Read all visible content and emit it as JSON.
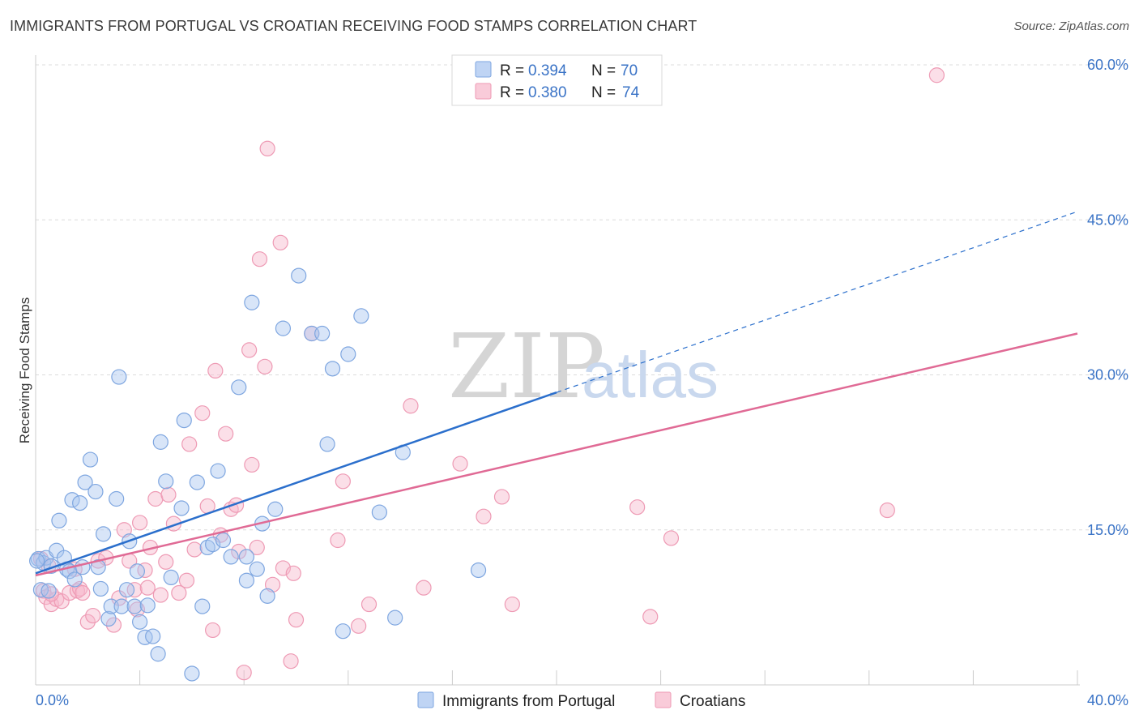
{
  "header": {
    "title": "IMMIGRANTS FROM PORTUGAL VS CROATIAN RECEIVING FOOD STAMPS CORRELATION CHART",
    "source": "Source: ZipAtlas.com"
  },
  "watermark": {
    "zip": "ZIP",
    "atlas": "atlas"
  },
  "colors": {
    "blue_fill": "#a9c6f0",
    "blue_stroke": "#7ea6e0",
    "blue_line": "#2b6fcc",
    "pink_fill": "#f7b9cc",
    "pink_stroke": "#ee9ab4",
    "pink_line": "#e06a95",
    "grid": "#dcdcdc",
    "axis_text": "#3a73c6"
  },
  "legend_top": {
    "rows": [
      {
        "r_label": "R = ",
        "r_value": "0.394",
        "n_label": "N = ",
        "n_value": "70"
      },
      {
        "r_label": "R = ",
        "r_value": "0.380",
        "n_label": "N = ",
        "n_value": "74"
      }
    ]
  },
  "legend_bottom": {
    "items": [
      "Immigrants from Portugal",
      "Croatians"
    ]
  },
  "chart_data": {
    "type": "scatter",
    "title": "IMMIGRANTS FROM PORTUGAL VS CROATIAN RECEIVING FOOD STAMPS CORRELATION CHART",
    "xlabel": "",
    "ylabel": "Receiving Food Stamps",
    "xlim": [
      0,
      40
    ],
    "ylim": [
      0,
      60
    ],
    "x_tick_labels": {
      "left": "0.0%",
      "right": "40.0%"
    },
    "y_ticks": [
      {
        "value": 15,
        "label": "15.0%"
      },
      {
        "value": 30,
        "label": "30.0%"
      },
      {
        "value": 45,
        "label": "45.0%"
      },
      {
        "value": 60,
        "label": "60.0%"
      }
    ],
    "legend_position": "top-center",
    "grid": true,
    "series": [
      {
        "name": "Immigrants from Portugal",
        "R": 0.394,
        "N": 70,
        "trend": {
          "x0": 0,
          "y0": 10.8,
          "x1": 20,
          "y1": 28.3,
          "dashed_to_x": 40,
          "dashed_to_y": 45.8
        },
        "points": [
          [
            0.1,
            12.2
          ],
          [
            0.2,
            9.2
          ],
          [
            0.3,
            11.8
          ],
          [
            0.4,
            12.3
          ],
          [
            0.5,
            9.1
          ],
          [
            0.6,
            11.5
          ],
          [
            0.8,
            13.0
          ],
          [
            0.9,
            15.9
          ],
          [
            1.1,
            12.3
          ],
          [
            1.2,
            11.2
          ],
          [
            1.3,
            11.0
          ],
          [
            1.4,
            17.9
          ],
          [
            1.5,
            10.2
          ],
          [
            1.7,
            17.6
          ],
          [
            1.8,
            11.4
          ],
          [
            1.9,
            19.6
          ],
          [
            2.1,
            21.8
          ],
          [
            2.3,
            18.7
          ],
          [
            2.4,
            11.4
          ],
          [
            2.5,
            9.3
          ],
          [
            2.6,
            14.6
          ],
          [
            2.8,
            6.4
          ],
          [
            2.9,
            7.6
          ],
          [
            3.1,
            18.0
          ],
          [
            3.2,
            29.8
          ],
          [
            3.3,
            7.6
          ],
          [
            3.5,
            9.2
          ],
          [
            3.6,
            13.9
          ],
          [
            3.8,
            7.6
          ],
          [
            3.9,
            11.0
          ],
          [
            4.0,
            6.1
          ],
          [
            4.2,
            4.6
          ],
          [
            4.3,
            7.7
          ],
          [
            4.5,
            4.7
          ],
          [
            4.7,
            3.0
          ],
          [
            4.8,
            23.5
          ],
          [
            5.0,
            19.7
          ],
          [
            5.2,
            10.4
          ],
          [
            5.6,
            17.1
          ],
          [
            5.7,
            25.6
          ],
          [
            6.0,
            1.1
          ],
          [
            6.2,
            19.6
          ],
          [
            6.4,
            7.6
          ],
          [
            6.6,
            13.3
          ],
          [
            6.8,
            13.6
          ],
          [
            7.0,
            20.7
          ],
          [
            7.2,
            14.0
          ],
          [
            7.5,
            12.4
          ],
          [
            7.8,
            28.8
          ],
          [
            8.1,
            12.4
          ],
          [
            8.1,
            10.1
          ],
          [
            8.3,
            37.0
          ],
          [
            8.5,
            11.2
          ],
          [
            8.7,
            15.6
          ],
          [
            8.9,
            8.6
          ],
          [
            9.2,
            17.0
          ],
          [
            9.5,
            34.5
          ],
          [
            10.1,
            39.6
          ],
          [
            10.6,
            34.0
          ],
          [
            11.0,
            34.0
          ],
          [
            11.2,
            23.3
          ],
          [
            11.4,
            30.6
          ],
          [
            11.8,
            5.2
          ],
          [
            12.0,
            32.0
          ],
          [
            12.5,
            35.7
          ],
          [
            13.2,
            16.7
          ],
          [
            13.8,
            6.5
          ],
          [
            14.1,
            22.5
          ],
          [
            17.0,
            11.1
          ],
          [
            0.05,
            12.0
          ]
        ]
      },
      {
        "name": "Croatians",
        "R": 0.38,
        "N": 74,
        "trend": {
          "x0": 0,
          "y0": 10.6,
          "x1": 40,
          "y1": 34.0
        },
        "points": [
          [
            0.2,
            12.2
          ],
          [
            0.3,
            9.1
          ],
          [
            0.4,
            8.5
          ],
          [
            0.5,
            11.5
          ],
          [
            0.6,
            7.8
          ],
          [
            0.8,
            8.3
          ],
          [
            1.0,
            8.1
          ],
          [
            1.3,
            8.9
          ],
          [
            1.5,
            11.2
          ],
          [
            1.6,
            9.1
          ],
          [
            1.7,
            9.3
          ],
          [
            1.8,
            8.9
          ],
          [
            2.0,
            6.1
          ],
          [
            2.2,
            6.7
          ],
          [
            2.4,
            12.0
          ],
          [
            2.7,
            12.3
          ],
          [
            3.0,
            5.8
          ],
          [
            3.2,
            8.4
          ],
          [
            3.4,
            15.0
          ],
          [
            3.6,
            12.0
          ],
          [
            3.8,
            9.2
          ],
          [
            3.9,
            7.3
          ],
          [
            4.0,
            15.7
          ],
          [
            4.2,
            11.1
          ],
          [
            4.3,
            9.4
          ],
          [
            4.4,
            13.3
          ],
          [
            4.6,
            18.0
          ],
          [
            4.8,
            8.7
          ],
          [
            5.0,
            11.9
          ],
          [
            5.1,
            18.4
          ],
          [
            5.3,
            15.6
          ],
          [
            5.5,
            8.9
          ],
          [
            5.8,
            10.1
          ],
          [
            5.9,
            23.3
          ],
          [
            6.1,
            13.1
          ],
          [
            6.4,
            26.3
          ],
          [
            6.6,
            17.3
          ],
          [
            6.8,
            5.3
          ],
          [
            6.9,
            30.4
          ],
          [
            7.1,
            14.5
          ],
          [
            7.3,
            24.3
          ],
          [
            7.5,
            17.0
          ],
          [
            7.7,
            17.4
          ],
          [
            7.8,
            12.9
          ],
          [
            8.0,
            1.2
          ],
          [
            8.2,
            32.4
          ],
          [
            8.3,
            21.3
          ],
          [
            8.5,
            13.3
          ],
          [
            8.6,
            41.2
          ],
          [
            8.8,
            30.8
          ],
          [
            8.9,
            51.9
          ],
          [
            9.1,
            9.7
          ],
          [
            9.4,
            42.8
          ],
          [
            9.5,
            11.3
          ],
          [
            9.8,
            2.3
          ],
          [
            9.9,
            10.8
          ],
          [
            10.0,
            6.3
          ],
          [
            10.6,
            34.0
          ],
          [
            11.6,
            14.0
          ],
          [
            11.8,
            19.7
          ],
          [
            12.4,
            5.7
          ],
          [
            12.8,
            7.8
          ],
          [
            14.4,
            27.0
          ],
          [
            14.9,
            9.4
          ],
          [
            16.3,
            21.4
          ],
          [
            17.2,
            16.3
          ],
          [
            17.9,
            18.2
          ],
          [
            18.3,
            7.8
          ],
          [
            23.1,
            17.2
          ],
          [
            23.6,
            6.6
          ],
          [
            24.4,
            14.2
          ],
          [
            32.7,
            16.9
          ],
          [
            34.6,
            59.0
          ],
          [
            0.6,
            8.8
          ]
        ]
      }
    ]
  }
}
